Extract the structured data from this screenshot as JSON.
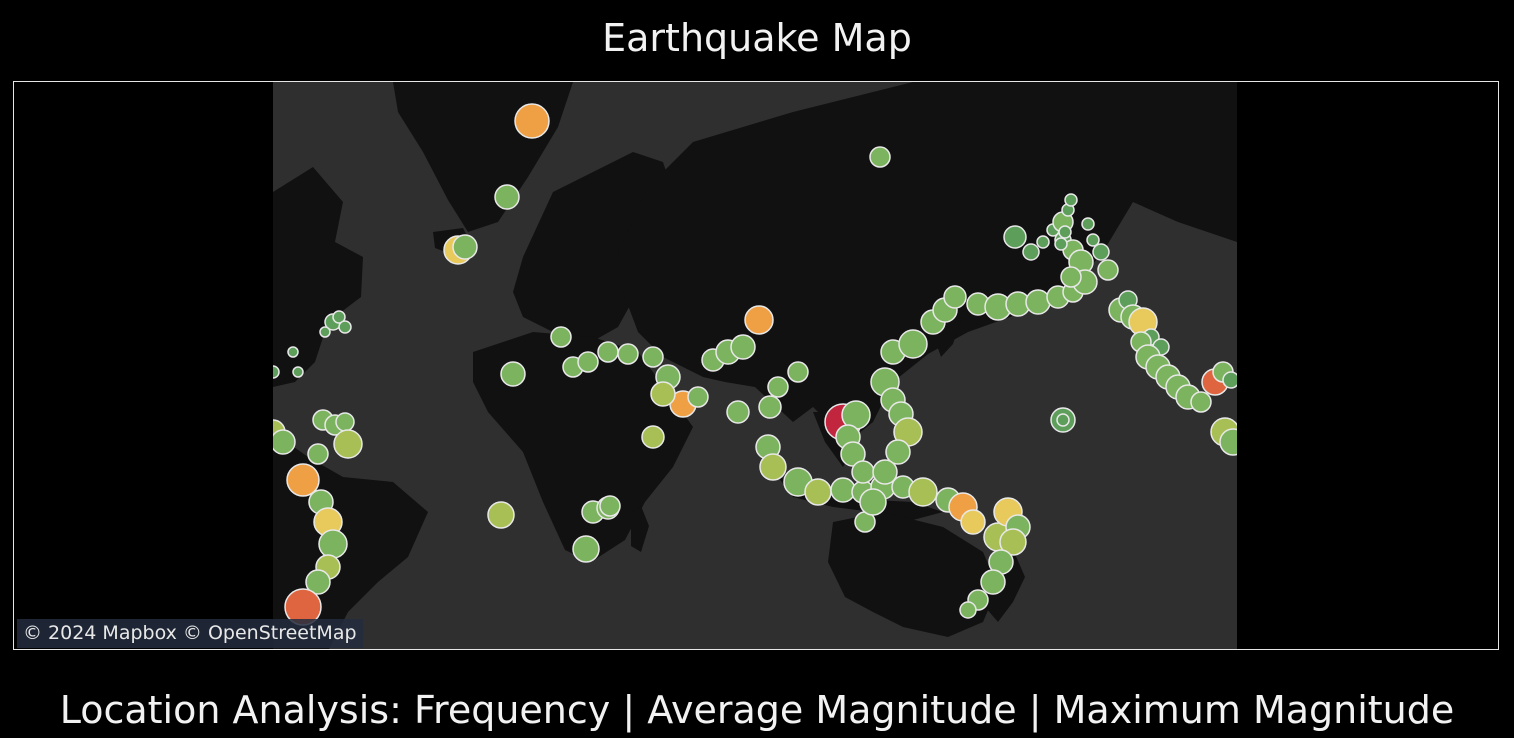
{
  "header": {
    "title": "Earthquake Map"
  },
  "map": {
    "attribution": "© 2024 Mapbox  © OpenStreetMap",
    "land_color": "#111111",
    "ocean_color": "#2f2f2f",
    "marker_stroke": "#e8e8e8",
    "magnitude_colors": [
      "#5e9e5b",
      "#7cb35f",
      "#a8bf55",
      "#e8c95b",
      "#f0a044",
      "#df6540",
      "#c2263f"
    ]
  },
  "footer": {
    "caption": "Location Analysis: Frequency | Average Magnitude | Maximum Magnitude"
  }
}
